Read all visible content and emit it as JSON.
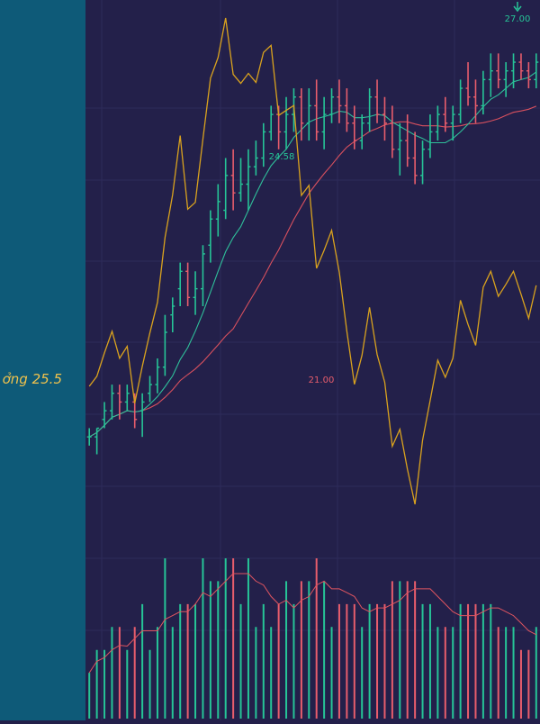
{
  "side_label": "ởng 25.5",
  "colors": {
    "background": "#23204a",
    "sidebar": "#0e5a78",
    "up": "#26c497",
    "down": "#e85d6c",
    "ma_fast": "#2fbf9a",
    "ma_slow": "#d8505e",
    "oscillator": "#d9a21e",
    "volume_ma": "#e05560",
    "grid": "#2e2b5a"
  },
  "chart_data": {
    "type": "bar",
    "title": "",
    "ohlc_series": [
      [
        22.6,
        22.7,
        22.5,
        22.6
      ],
      [
        22.6,
        22.7,
        22.4,
        22.7
      ],
      [
        22.8,
        23.0,
        22.7,
        22.9
      ],
      [
        22.9,
        23.2,
        22.8,
        23.1
      ],
      [
        23.1,
        23.2,
        22.8,
        23.0
      ],
      [
        23.0,
        23.2,
        22.9,
        23.1
      ],
      [
        23.0,
        23.1,
        22.7,
        22.8
      ],
      [
        22.9,
        23.1,
        22.6,
        23.0
      ],
      [
        23.1,
        23.3,
        23.0,
        23.2
      ],
      [
        23.2,
        23.5,
        23.1,
        23.4
      ],
      [
        23.4,
        24.0,
        23.3,
        23.8
      ],
      [
        24.0,
        24.2,
        23.8,
        24.1
      ],
      [
        24.3,
        24.6,
        24.1,
        24.5
      ],
      [
        24.5,
        24.6,
        24.1,
        24.2
      ],
      [
        24.2,
        24.5,
        24.0,
        24.3
      ],
      [
        24.3,
        24.8,
        24.1,
        24.7
      ],
      [
        24.8,
        25.2,
        24.6,
        25.1
      ],
      [
        25.1,
        25.5,
        24.9,
        25.3
      ],
      [
        25.2,
        25.8,
        25.1,
        25.6
      ],
      [
        25.6,
        25.9,
        25.2,
        25.4
      ],
      [
        25.4,
        25.8,
        25.3,
        25.5
      ],
      [
        25.5,
        25.9,
        25.2,
        25.7
      ],
      [
        25.7,
        26.0,
        25.6,
        25.8
      ],
      [
        25.8,
        26.2,
        25.7,
        26.1
      ],
      [
        26.1,
        26.4,
        26.0,
        26.3
      ],
      [
        26.3,
        26.4,
        25.9,
        26.1
      ],
      [
        26.1,
        26.5,
        25.9,
        26.3
      ],
      [
        26.3,
        26.6,
        26.1,
        26.5
      ],
      [
        26.5,
        26.6,
        26.0,
        26.2
      ],
      [
        26.2,
        26.6,
        26.0,
        26.4
      ],
      [
        26.4,
        26.7,
        26.0,
        26.1
      ],
      [
        26.1,
        26.5,
        25.9,
        26.3
      ],
      [
        26.3,
        26.6,
        26.2,
        26.5
      ],
      [
        26.5,
        26.7,
        26.2,
        26.4
      ],
      [
        26.4,
        26.6,
        26.1,
        26.2
      ],
      [
        26.2,
        26.4,
        25.9,
        26.0
      ],
      [
        26.0,
        26.3,
        25.9,
        26.2
      ],
      [
        26.2,
        26.6,
        26.1,
        26.5
      ],
      [
        26.5,
        26.7,
        26.2,
        26.3
      ],
      [
        26.3,
        26.5,
        26.0,
        26.2
      ],
      [
        26.2,
        26.4,
        25.8,
        25.9
      ],
      [
        25.9,
        26.2,
        25.6,
        26.0
      ],
      [
        26.0,
        26.3,
        25.7,
        25.8
      ],
      [
        25.8,
        26.1,
        25.5,
        25.6
      ],
      [
        25.6,
        26.0,
        25.5,
        25.9
      ],
      [
        25.9,
        26.3,
        25.8,
        26.1
      ],
      [
        26.1,
        26.4,
        26.0,
        26.3
      ],
      [
        26.3,
        26.5,
        26.1,
        26.2
      ],
      [
        26.2,
        26.4,
        26.0,
        26.3
      ],
      [
        26.3,
        26.7,
        26.2,
        26.6
      ],
      [
        26.6,
        26.9,
        26.4,
        26.5
      ],
      [
        26.5,
        26.7,
        26.2,
        26.4
      ],
      [
        26.4,
        26.8,
        26.3,
        26.7
      ],
      [
        26.7,
        27.0,
        26.5,
        26.8
      ],
      [
        26.8,
        27.0,
        26.6,
        26.7
      ],
      [
        26.7,
        26.9,
        26.5,
        26.8
      ],
      [
        26.8,
        27.0,
        26.6,
        26.9
      ],
      [
        26.9,
        27.0,
        26.7,
        26.8
      ],
      [
        26.8,
        26.9,
        26.6,
        26.7
      ],
      [
        26.7,
        27.0,
        26.6,
        26.9
      ]
    ],
    "annotations": [
      {
        "text": "27.00",
        "color": "#26c497",
        "arrow": true
      },
      {
        "text": "24.58",
        "color": "#26c497",
        "arrow": false
      },
      {
        "text": "21.00",
        "color": "#e85d6c",
        "arrow": false
      }
    ]
  }
}
